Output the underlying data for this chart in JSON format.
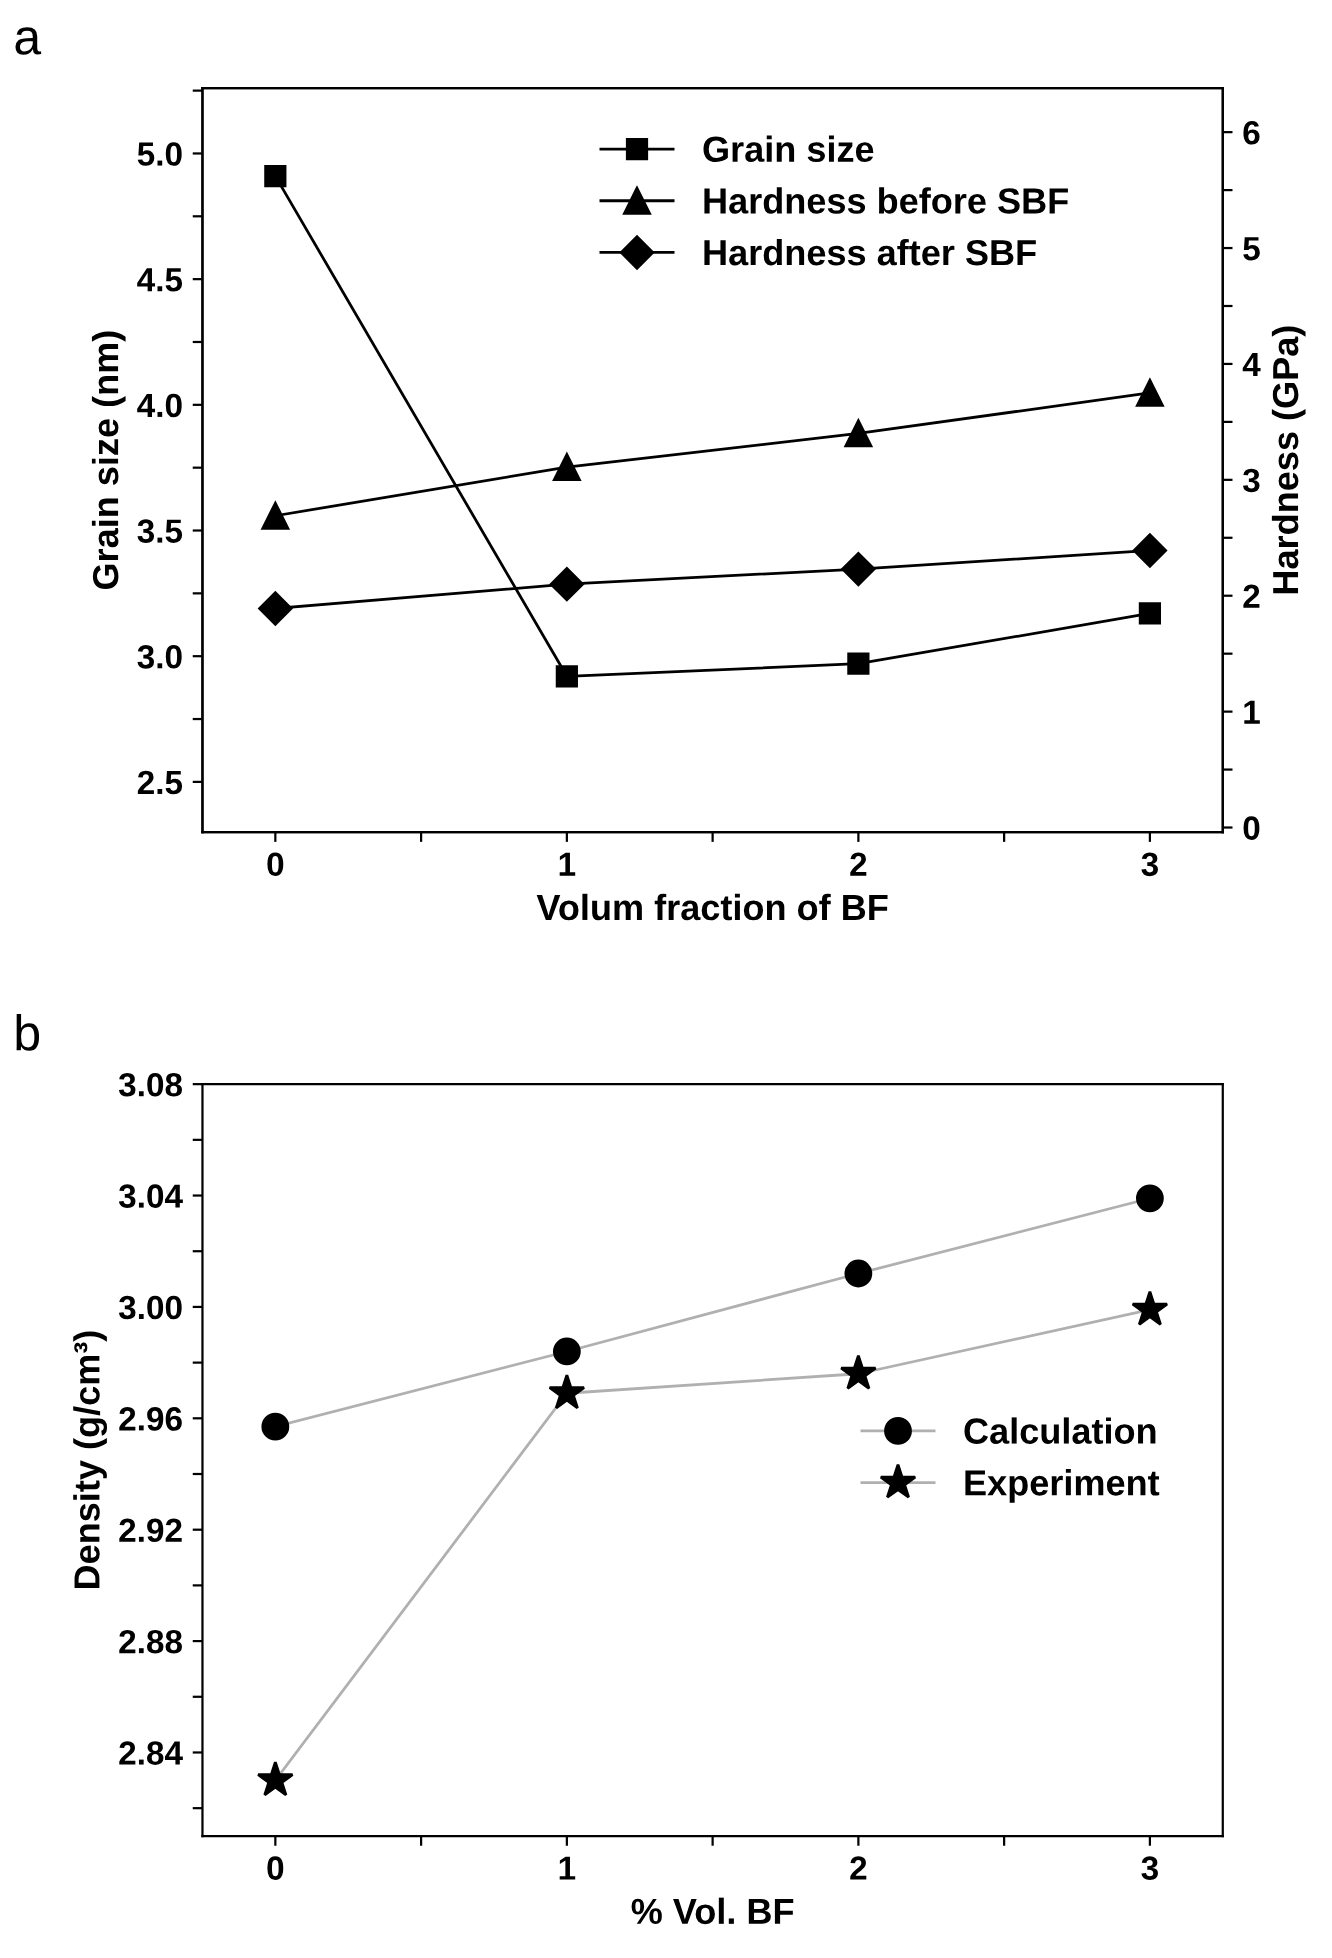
{
  "chart_data": [
    {
      "type": "line",
      "title": "a",
      "xlabel": "Volum fraction of BF",
      "ylabel": "Grain size (nm)",
      "y2label": "Hardness (GPa)",
      "x": [
        0,
        1,
        2,
        3
      ],
      "series": [
        {
          "name": "Grain size",
          "color": "#000000",
          "marker": "square",
          "values": [
            4.91,
            2.92,
            2.97,
            3.17
          ]
        },
        {
          "name": "Hardness before SBF",
          "color": "#000000",
          "marker": "triangle",
          "axis": "y2",
          "values": [
            2.69,
            3.11,
            3.4,
            3.75
          ]
        },
        {
          "name": "Hardness after SBF",
          "color": "#000000",
          "marker": "diamond",
          "axis": "y2",
          "values": [
            1.89,
            2.1,
            2.23,
            2.39
          ]
        }
      ],
      "xlim": [
        -0.25,
        3.25
      ],
      "xticks": [
        0,
        {
          "value": 0.5,
          "label": null
        },
        1,
        {
          "value": 1.5,
          "label": null
        },
        2,
        {
          "value": 2.5,
          "label": null
        },
        3
      ],
      "ylim": [
        2.3,
        5.26
      ],
      "yticks": [
        {
          "value": 2.5,
          "label": "2.5"
        },
        {
          "value": 2.75,
          "label": null
        },
        {
          "value": 3.0,
          "label": "3.0"
        },
        {
          "value": 3.25,
          "label": null
        },
        {
          "value": 3.5,
          "label": "3.5"
        },
        {
          "value": 3.75,
          "label": null
        },
        {
          "value": 4.0,
          "label": "4.0"
        },
        {
          "value": 4.25,
          "label": null
        },
        {
          "value": 4.5,
          "label": "4.5"
        },
        {
          "value": 4.75,
          "label": null
        },
        {
          "value": 5.0,
          "label": "5.0"
        },
        {
          "value": 5.25,
          "label": null
        }
      ],
      "y2lim": [
        -0.04,
        6.38
      ],
      "y2ticks": [
        0,
        {
          "value": 0.5,
          "label": null
        },
        1,
        {
          "value": 1.5,
          "label": null
        },
        2,
        {
          "value": 2.5,
          "label": null
        },
        3,
        {
          "value": 3.5,
          "label": null
        },
        4,
        {
          "value": 4.5,
          "label": null
        },
        5,
        {
          "value": 5.5,
          "label": null
        },
        6
      ],
      "grid": false,
      "legend": "top",
      "line_style": "solid"
    },
    {
      "type": "line",
      "title": "b",
      "xlabel": "% Vol. BF",
      "ylabel": "Density (g/cm³)",
      "x": [
        0,
        1,
        2,
        3
      ],
      "series": [
        {
          "name": "Calculation",
          "color": "#000000",
          "marker": "circle",
          "values": [
            2.957,
            2.984,
            3.012,
            3.039
          ]
        },
        {
          "name": "Experiment",
          "color": "#000000",
          "marker": "star",
          "values": [
            2.83,
            2.969,
            2.976,
            2.999
          ]
        }
      ],
      "xlim": [
        -0.25,
        3.25
      ],
      "xticks": [
        0,
        {
          "value": 0.5,
          "label": null
        },
        1,
        {
          "value": 1.5,
          "label": null
        },
        2,
        {
          "value": 2.5,
          "label": null
        },
        3
      ],
      "ylim": [
        2.81,
        3.08
      ],
      "yticks": [
        {
          "value": 2.82,
          "label": null
        },
        2.84,
        {
          "value": 2.86,
          "label": null
        },
        2.88,
        {
          "value": 2.9,
          "label": null
        },
        2.92,
        {
          "value": 2.94,
          "label": null
        },
        2.96,
        {
          "value": 2.98,
          "label": null
        },
        {
          "value": 3.0,
          "label": "3.00"
        },
        {
          "value": 3.02,
          "label": null
        },
        3.04,
        {
          "value": 3.06,
          "label": null
        },
        3.08
      ],
      "grid": false,
      "legend": "right",
      "line_style": "solid"
    }
  ]
}
